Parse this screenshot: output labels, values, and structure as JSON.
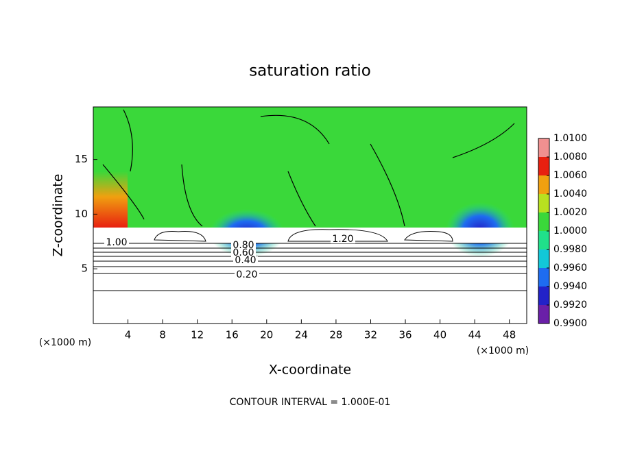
{
  "chart_data": {
    "type": "contour",
    "title": "saturation ratio",
    "x_label": "X-coordinate",
    "y_label": "Z-coordinate",
    "x_unit_left": "(×1000 m)",
    "x_unit_right": "(×1000 m)",
    "xlim": [
      0,
      50
    ],
    "xticks": [
      4,
      8,
      12,
      16,
      20,
      24,
      28,
      32,
      36,
      40,
      44,
      48
    ],
    "ylim": [
      0,
      19.8
    ],
    "yticks": [
      5,
      10,
      15
    ],
    "colorbar": {
      "lim": [
        0.99,
        1.01
      ],
      "ticks": [
        {
          "value": 0.99,
          "label": "0.9900"
        },
        {
          "value": 0.992,
          "label": "0.9920"
        },
        {
          "value": 0.994,
          "label": "0.9940"
        },
        {
          "value": 0.996,
          "label": "0.9960"
        },
        {
          "value": 0.998,
          "label": "0.9980"
        },
        {
          "value": 1.0,
          "label": "1.0000"
        },
        {
          "value": 1.002,
          "label": "1.0020"
        },
        {
          "value": 1.004,
          "label": "1.0040"
        },
        {
          "value": 1.006,
          "label": "1.0060"
        },
        {
          "value": 1.008,
          "label": "1.0080"
        },
        {
          "value": 1.01,
          "label": "1.0100"
        }
      ],
      "colors": [
        "#6a1fa8",
        "#2222c8",
        "#1e6cf0",
        "#12c8d8",
        "#20e08a",
        "#3ad83a",
        "#b8e020",
        "#f0a010",
        "#e82010",
        "#f09090"
      ]
    },
    "contour_labels": [
      {
        "value": 1.0,
        "label": "1.00"
      },
      {
        "value": 0.8,
        "label": "0.80"
      },
      {
        "value": 0.6,
        "label": "0.60"
      },
      {
        "value": 0.4,
        "label": "0.40"
      },
      {
        "value": 0.2,
        "label": "0.20"
      },
      {
        "value": 1.2,
        "label": "1.20"
      }
    ],
    "footer": "CONTOUR INTERVAL = 1.000E-01"
  }
}
